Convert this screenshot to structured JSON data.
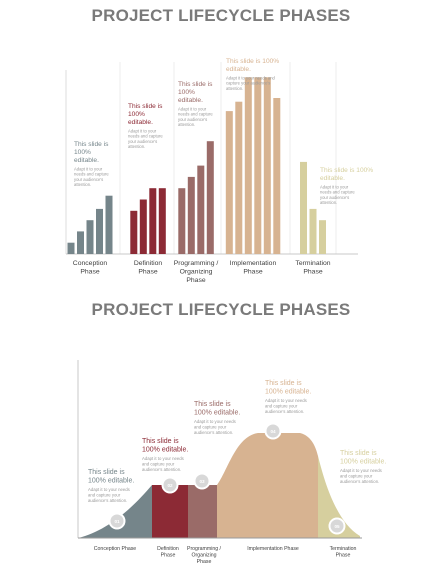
{
  "chart_data": [
    {
      "type": "bar",
      "title": "PROJECT LIFECYCLE PHASES",
      "categories": [
        "Conception Phase",
        "Definition Phase",
        "Programming / Organizing Phase",
        "Implementation Phase",
        "Termination Phase"
      ],
      "category_lines": [
        [
          "Conception",
          "Phase"
        ],
        [
          "Definition",
          "Phase"
        ],
        [
          "Programming /",
          "Organizing",
          "Phase"
        ],
        [
          "Implementation",
          "Phase"
        ],
        [
          "Termination",
          "Phase"
        ]
      ],
      "colors": [
        "#75858a",
        "#8c2a35",
        "#9a6b68",
        "#d7b391",
        "#d6cf9e"
      ],
      "bar_values": [
        [
          12,
          24,
          36,
          48,
          62
        ],
        [
          46,
          58,
          70,
          70
        ],
        [
          70,
          82,
          94,
          120
        ],
        [
          152,
          162,
          188,
          188,
          188,
          166
        ],
        [
          98,
          48,
          36
        ]
      ],
      "ylim": [
        0,
        200
      ],
      "annotations": [
        {
          "heading": [
            "This slide is",
            "100%",
            "editable."
          ],
          "body": [
            "Adapt it to your",
            "needs and capture",
            "your audience's",
            "attention."
          ]
        },
        {
          "heading": [
            "This slide is",
            "100%",
            "editable."
          ],
          "body": [
            "Adapt it to your",
            "needs and capture",
            "your audience's",
            "attention."
          ]
        },
        {
          "heading": [
            "This slide is",
            "100%",
            "editable."
          ],
          "body": [
            "Adapt it to your",
            "needs and capture",
            "your audience's",
            "attention."
          ]
        },
        {
          "heading": [
            "This slide is 100%",
            "editable."
          ],
          "body": [
            "Adapt it to your needs and",
            "capture your audience's",
            "attention."
          ]
        },
        {
          "heading": [
            "This slide is 100%",
            "editable."
          ],
          "body": [
            "Adapt it to your",
            "needs and capture",
            "your audience's",
            "attention."
          ]
        }
      ]
    },
    {
      "type": "area",
      "title": "PROJECT LIFECYCLE PHASES",
      "categories": [
        "Conception Phase",
        "Definition Phase",
        "Programming / Organizing Phase",
        "Implementation Phase",
        "Termination Phase"
      ],
      "category_lines": [
        [
          "Conception Phase"
        ],
        [
          "Definition",
          "Phase"
        ],
        [
          "Programming /",
          "Organizing",
          "Phase"
        ],
        [
          "Implementation Phase"
        ],
        [
          "Termination",
          "Phase"
        ]
      ],
      "colors": [
        "#75858a",
        "#8c2a35",
        "#9a6b68",
        "#d7b391",
        "#d6cf9e"
      ],
      "markers": [
        "01",
        "02",
        "03",
        "04",
        "05"
      ],
      "annotations": [
        {
          "heading": [
            "This slide is",
            "100% editable."
          ],
          "body": [
            "Adapt it to your needs",
            "and capture your",
            "audience's attention."
          ]
        },
        {
          "heading": [
            "This slide is",
            "100% editable."
          ],
          "body": [
            "Adapt it to your needs",
            "and capture your",
            "audience's attention."
          ]
        },
        {
          "heading": [
            "This slide is",
            "100% editable."
          ],
          "body": [
            "Adapt it to your needs",
            "and capture your",
            "audience's attention."
          ]
        },
        {
          "heading": [
            "This slide is",
            "100% editable."
          ],
          "body": [
            "Adapt it to your needs",
            "and capture your",
            "audience's attention."
          ]
        },
        {
          "heading": [
            "This slide is",
            "100% editable."
          ],
          "body": [
            "Adapt it to your needs",
            "and capture your",
            "audience's attention."
          ]
        }
      ]
    }
  ]
}
